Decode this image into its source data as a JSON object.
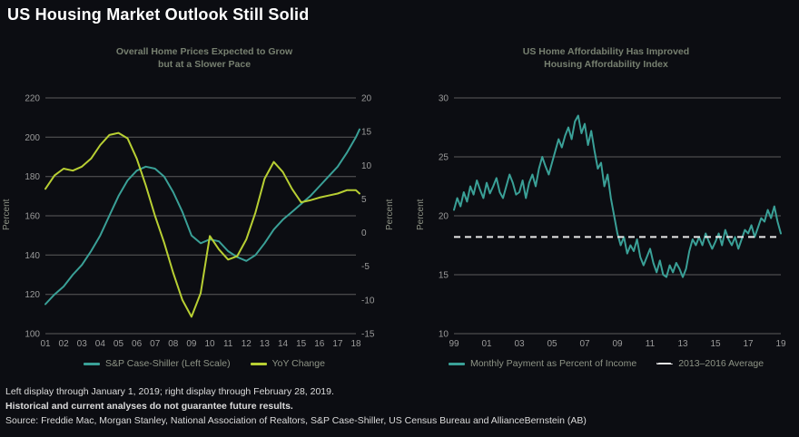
{
  "header": {
    "title": "US Housing Market Outlook Still Solid"
  },
  "colors": {
    "background": "#0c0d12",
    "teal": "#3aa097",
    "yellow_green": "#b8cf33",
    "grid": "#5c5c5c",
    "tick_label": "#9b9b9b",
    "chart_title": "#778070",
    "dashed_white": "#e8e8e8"
  },
  "chart_data": [
    {
      "type": "line",
      "title_line1": "Overall Home Prices Expected to Grow",
      "title_line2": "but at a Slower Pace",
      "left_axis": {
        "label": "Percent",
        "min": 100,
        "max": 220,
        "ticks": [
          220,
          200,
          180,
          160,
          140,
          120,
          100
        ]
      },
      "right_axis": {
        "label": "Percent",
        "min": -15,
        "max": 20,
        "ticks": [
          20,
          15,
          10,
          5,
          0,
          -5,
          -10,
          -15
        ]
      },
      "x_axis": {
        "min": 2001,
        "max": 2018,
        "tick_values": [
          2001,
          2002,
          2003,
          2004,
          2005,
          2006,
          2007,
          2008,
          2009,
          2010,
          2011,
          2012,
          2013,
          2014,
          2015,
          2016,
          2017,
          2018
        ],
        "tick_labels": [
          "01",
          "02",
          "03",
          "04",
          "05",
          "06",
          "07",
          "08",
          "09",
          "10",
          "11",
          "12",
          "13",
          "14",
          "15",
          "16",
          "17",
          "18"
        ]
      },
      "grid": true,
      "legend_position": "bottom",
      "series": [
        {
          "name": "S&P Case-Shiller (Left Scale)",
          "axis": "left",
          "color": "#3aa097",
          "x": [
            2001,
            2001.5,
            2002,
            2002.5,
            2003,
            2003.5,
            2004,
            2004.5,
            2005,
            2005.5,
            2006,
            2006.5,
            2007,
            2007.5,
            2008,
            2008.5,
            2009,
            2009.5,
            2010,
            2010.5,
            2011,
            2011.5,
            2012,
            2012.5,
            2013,
            2013.5,
            2014,
            2014.5,
            2015,
            2015.5,
            2016,
            2016.5,
            2017,
            2017.5,
            2018,
            2018.2
          ],
          "values": [
            115,
            120,
            124,
            130,
            135,
            142,
            150,
            160,
            170,
            178,
            183,
            185,
            184,
            180,
            172,
            162,
            150,
            146,
            148,
            147,
            142,
            139,
            137,
            140,
            146,
            153,
            158,
            162,
            166,
            170,
            175,
            180,
            185,
            192,
            200,
            204
          ]
        },
        {
          "name": "YoY Change",
          "axis": "right",
          "color": "#b8cf33",
          "x": [
            2001,
            2001.5,
            2002,
            2002.5,
            2003,
            2003.5,
            2004,
            2004.5,
            2005,
            2005.5,
            2006,
            2006.5,
            2007,
            2007.5,
            2008,
            2008.5,
            2009,
            2009.5,
            2010,
            2010.5,
            2011,
            2011.5,
            2012,
            2012.5,
            2013,
            2013.5,
            2014,
            2014.5,
            2015,
            2015.5,
            2016,
            2016.5,
            2017,
            2017.5,
            2018,
            2018.2
          ],
          "values": [
            6.5,
            8.5,
            9.5,
            9.2,
            9.8,
            11,
            13,
            14.5,
            14.8,
            14,
            11,
            7,
            2.5,
            -1.5,
            -6,
            -10,
            -12.5,
            -9,
            -0.5,
            -2.5,
            -4,
            -3.5,
            -1,
            3,
            8,
            10.5,
            9,
            6.5,
            4.5,
            4.8,
            5.2,
            5.5,
            5.8,
            6.3,
            6.3,
            5.8
          ]
        }
      ]
    },
    {
      "type": "line",
      "title_line1": "US Home Affordability Has Improved",
      "title_line2": "Housing Affordability Index",
      "left_axis": {
        "label": "Percent",
        "min": 10,
        "max": 30,
        "ticks": [
          30,
          25,
          20,
          15,
          10
        ]
      },
      "x_axis": {
        "min": 1999,
        "max": 2019,
        "tick_values": [
          1999,
          2001,
          2003,
          2005,
          2007,
          2009,
          2011,
          2013,
          2015,
          2017,
          2019
        ],
        "tick_labels": [
          "99",
          "01",
          "03",
          "05",
          "07",
          "09",
          "11",
          "13",
          "15",
          "17",
          "19"
        ]
      },
      "grid": true,
      "legend_position": "bottom",
      "series": [
        {
          "name": "Monthly Payment as Percent of Income",
          "axis": "left",
          "color": "#3aa097",
          "x_start": 1999,
          "x_step": 0.2,
          "values": [
            20.5,
            21.5,
            20.8,
            22.0,
            21.2,
            22.5,
            21.8,
            23.0,
            22.2,
            21.5,
            22.8,
            21.9,
            22.5,
            23.2,
            22.0,
            21.5,
            22.5,
            23.5,
            22.8,
            21.8,
            22.0,
            23.0,
            21.5,
            22.8,
            23.5,
            22.5,
            24.0,
            25.0,
            24.2,
            23.5,
            24.5,
            25.5,
            26.5,
            25.8,
            26.8,
            27.5,
            26.5,
            28.0,
            28.5,
            27.0,
            27.8,
            26.0,
            27.2,
            25.5,
            24.0,
            24.5,
            22.5,
            23.5,
            21.5,
            20.0,
            18.5,
            17.5,
            18.2,
            16.8,
            17.5,
            17.0,
            18.0,
            16.5,
            15.8,
            16.5,
            17.2,
            16.0,
            15.2,
            16.2,
            15.0,
            14.8,
            15.8,
            15.2,
            16.0,
            15.5,
            14.8,
            15.5,
            17.0,
            18.0,
            17.5,
            18.2,
            17.5,
            18.5,
            17.8,
            17.2,
            17.8,
            18.5,
            17.5,
            18.8,
            18.0,
            17.5,
            18.2,
            17.2,
            18.0,
            18.8,
            18.5,
            19.2,
            18.2,
            19.0,
            19.8,
            19.5,
            20.5,
            19.8,
            20.8,
            19.5,
            18.5
          ]
        }
      ],
      "average_line": {
        "name": "2013–2016 Average",
        "value": 18.2,
        "color": "#e8e8e8"
      }
    }
  ],
  "footer": {
    "line1": "Left display through January 1, 2019; right display through February 28, 2019.",
    "line2": "Historical and current analyses do not guarantee future results.",
    "line3": "Source: Freddie Mac, Morgan Stanley, National Association of Realtors, S&P Case-Shiller, US Census Bureau and AllianceBernstein (AB)"
  }
}
